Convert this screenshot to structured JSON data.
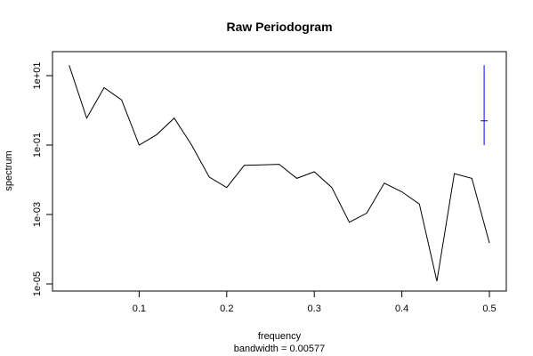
{
  "chart_data": {
    "type": "line",
    "title": "Raw Periodogram",
    "xlabel": "frequency",
    "subtitle": "bandwidth = 0.00577",
    "ylabel": "spectrum",
    "y_scale": "log",
    "x_ticks": [
      "0.1",
      "0.2",
      "0.3",
      "0.4",
      "0.5"
    ],
    "y_ticks": [
      "1e-05",
      "1e-03",
      "1e-01",
      "1e+01"
    ],
    "x": [
      0.02,
      0.04,
      0.06,
      0.08,
      0.1,
      0.12,
      0.14,
      0.16,
      0.18,
      0.2,
      0.22,
      0.24,
      0.26,
      0.28,
      0.3,
      0.32,
      0.34,
      0.36,
      0.38,
      0.4,
      0.42,
      0.44,
      0.46,
      0.48,
      0.5
    ],
    "y": [
      20,
      0.6,
      4.5,
      2.0,
      0.1,
      0.2,
      0.6,
      0.1,
      0.012,
      0.006,
      0.026,
      0.027,
      0.028,
      0.011,
      0.017,
      0.006,
      0.0006,
      0.0011,
      0.008,
      0.0045,
      0.002,
      1.2e-05,
      0.015,
      0.011,
      0.00015
    ],
    "confidence_bar": {
      "x": 0.494,
      "center": 0.5,
      "lower": 0.1,
      "upper": 20,
      "color": "#0000ff"
    }
  }
}
